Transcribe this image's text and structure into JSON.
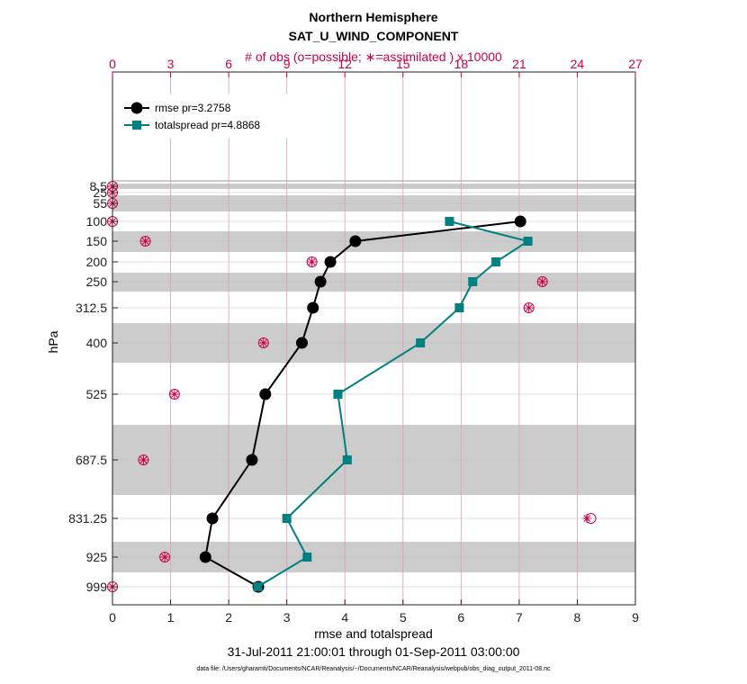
{
  "chart_data": {
    "type": "line",
    "title": "Northern Hemisphere",
    "subtitle": "SAT_U_WIND_COMPONENT",
    "top_axis_label": "# of obs (o=possible; ∗=assimilated ) x 10000",
    "xlabel": "rmse and totalspread",
    "ylabel": "hPa",
    "date_range": "31-Jul-2011 21:00:01 through 01-Sep-2011 03:00:00",
    "footnote": "data file: /Users/gharamti/Documents/NCAR/Reanalysis/~/Documents/NCAR/Reanalysis/webpub/obs_diag_output_2011-08.nc",
    "xlim": [
      0,
      9
    ],
    "x_ticks": [
      "0",
      "1",
      "2",
      "3",
      "4",
      "5",
      "6",
      "7",
      "8",
      "9"
    ],
    "top_xlim": [
      0,
      27
    ],
    "top_ticks": [
      "0",
      "3",
      "6",
      "9",
      "12",
      "15",
      "18",
      "21",
      "24",
      "27"
    ],
    "y_axis": "reversed",
    "y_ticks": [
      "8.5",
      "25",
      "55",
      "100",
      "150",
      "200",
      "250",
      "312.5",
      "400",
      "525",
      "687.5",
      "831.25",
      "925",
      "999"
    ],
    "legend_placement": "top-left",
    "series": [
      {
        "name": "rmse pr=3.2758",
        "color": "#000000",
        "marker": "circle",
        "points": [
          {
            "level": "100",
            "x": 7.02
          },
          {
            "level": "150",
            "x": 4.18
          },
          {
            "level": "200",
            "x": 3.75
          },
          {
            "level": "250",
            "x": 3.58
          },
          {
            "level": "312.5",
            "x": 3.45
          },
          {
            "level": "400",
            "x": 3.26
          },
          {
            "level": "525",
            "x": 2.63
          },
          {
            "level": "687.5",
            "x": 2.4
          },
          {
            "level": "831.25",
            "x": 1.72
          },
          {
            "level": "925",
            "x": 1.6
          },
          {
            "level": "999",
            "x": 2.51
          }
        ]
      },
      {
        "name": "totalspread pr=4.8868",
        "color": "#008080",
        "marker": "square",
        "points": [
          {
            "level": "100",
            "x": 5.8
          },
          {
            "level": "150",
            "x": 7.15
          },
          {
            "level": "200",
            "x": 6.6
          },
          {
            "level": "250",
            "x": 6.2
          },
          {
            "level": "312.5",
            "x": 5.97
          },
          {
            "level": "400",
            "x": 5.3
          },
          {
            "level": "525",
            "x": 3.88
          },
          {
            "level": "687.5",
            "x": 4.04
          },
          {
            "level": "831.25",
            "x": 3.0
          },
          {
            "level": "925",
            "x": 3.35
          },
          {
            "level": "999",
            "x": 2.5
          }
        ]
      }
    ],
    "obs_counts": {
      "color": "#cc0044",
      "levels": [
        "8.5",
        "25",
        "55",
        "100",
        "150",
        "200",
        "250",
        "312.5",
        "400",
        "525",
        "687.5",
        "831.25",
        "925",
        "999"
      ],
      "possible": [
        0.0,
        0.0,
        0.0,
        0.0,
        1.7,
        10.3,
        22.2,
        21.5,
        7.8,
        3.2,
        1.6,
        24.7,
        2.7,
        0.0
      ],
      "assimilated": [
        0.0,
        0.0,
        0.0,
        0.0,
        1.7,
        10.3,
        22.2,
        21.5,
        7.8,
        3.2,
        1.6,
        24.5,
        2.7,
        0.0
      ]
    }
  }
}
